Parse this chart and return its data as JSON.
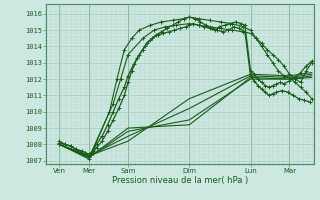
{
  "xlabel": "Pression niveau de la mer( hPa )",
  "bg_color": "#cce8e0",
  "grid_color_major": "#a8c8c0",
  "grid_color_minor": "#b8d8d0",
  "line_color": "#1a5c1a",
  "tick_label_color": "#1a5c1a",
  "spine_color": "#4a8a6a",
  "ylim": [
    1006.8,
    1016.6
  ],
  "yticks": [
    1007,
    1008,
    1009,
    1010,
    1011,
    1012,
    1013,
    1014,
    1015,
    1016
  ],
  "xlim": [
    0.0,
    7.2
  ],
  "xtick_positions": [
    0.35,
    1.15,
    2.2,
    3.85,
    5.5,
    6.55
  ],
  "xtick_labels": [
    "Ven",
    "Mer",
    "Sam",
    "Dim",
    "Lun",
    "Mar"
  ],
  "day_lines": [
    0.35,
    1.15,
    2.2,
    3.85,
    5.5,
    6.55
  ],
  "noisy1_x": [
    0.35,
    0.5,
    0.65,
    0.8,
    0.95,
    1.05,
    1.15,
    1.25,
    1.35,
    1.5,
    1.65,
    1.8,
    1.95,
    2.1,
    2.2,
    2.3,
    2.45,
    2.6,
    2.7,
    2.85,
    3.0,
    3.15,
    3.3,
    3.45,
    3.6,
    3.75,
    3.85,
    3.95,
    4.1,
    4.25,
    4.4,
    4.55,
    4.65,
    4.8,
    4.95,
    5.1,
    5.25,
    5.35,
    5.5,
    5.6,
    5.7,
    5.8,
    5.9,
    6.0,
    6.1,
    6.2,
    6.3,
    6.4,
    6.55,
    6.7,
    6.85,
    7.0,
    7.15
  ],
  "noisy1_y": [
    1008.1,
    1008.0,
    1007.9,
    1007.7,
    1007.5,
    1007.4,
    1007.3,
    1007.5,
    1007.8,
    1008.2,
    1008.8,
    1009.5,
    1010.2,
    1011.0,
    1011.8,
    1012.5,
    1013.3,
    1013.8,
    1014.2,
    1014.5,
    1014.7,
    1014.8,
    1014.9,
    1015.0,
    1015.1,
    1015.2,
    1015.3,
    1015.4,
    1015.3,
    1015.2,
    1015.1,
    1015.0,
    1015.2,
    1015.3,
    1015.4,
    1015.5,
    1015.4,
    1015.3,
    1012.5,
    1012.3,
    1012.0,
    1011.8,
    1011.6,
    1011.5,
    1011.6,
    1011.7,
    1011.8,
    1011.7,
    1011.9,
    1012.1,
    1012.4,
    1012.8,
    1013.1
  ],
  "noisy2_x": [
    0.35,
    0.5,
    0.65,
    0.8,
    0.95,
    1.05,
    1.15,
    1.25,
    1.35,
    1.5,
    1.65,
    1.8,
    1.95,
    2.1,
    2.2,
    2.35,
    2.5,
    2.65,
    2.8,
    2.95,
    3.1,
    3.25,
    3.4,
    3.55,
    3.7,
    3.85,
    4.0,
    4.15,
    4.3,
    4.45,
    4.6,
    4.75,
    4.9,
    5.05,
    5.2,
    5.35,
    5.5,
    5.6,
    5.7,
    5.8,
    5.9,
    6.0,
    6.1,
    6.2,
    6.35,
    6.5,
    6.65,
    6.8,
    6.95,
    7.1
  ],
  "noisy2_y": [
    1008.2,
    1008.0,
    1007.9,
    1007.7,
    1007.6,
    1007.5,
    1007.4,
    1007.6,
    1008.0,
    1008.5,
    1009.2,
    1010.0,
    1010.8,
    1011.5,
    1012.2,
    1012.9,
    1013.5,
    1014.0,
    1014.4,
    1014.7,
    1014.9,
    1015.1,
    1015.3,
    1015.5,
    1015.7,
    1015.8,
    1015.7,
    1015.5,
    1015.3,
    1015.1,
    1015.0,
    1014.9,
    1015.0,
    1015.2,
    1015.1,
    1014.9,
    1012.2,
    1011.9,
    1011.6,
    1011.4,
    1011.2,
    1011.0,
    1011.1,
    1011.2,
    1011.3,
    1011.2,
    1011.0,
    1010.8,
    1010.7,
    1010.6
  ],
  "line1_x": [
    0.35,
    1.15,
    2.2,
    3.85,
    5.5,
    6.55,
    7.15
  ],
  "line1_y": [
    1008.0,
    1007.2,
    1009.0,
    1009.2,
    1012.1,
    1012.0,
    1012.2
  ],
  "line2_x": [
    0.35,
    1.15,
    2.2,
    3.85,
    5.5,
    6.55,
    7.15
  ],
  "line2_y": [
    1008.0,
    1007.2,
    1008.8,
    1009.5,
    1012.0,
    1012.0,
    1012.1
  ],
  "line3_x": [
    0.35,
    1.15,
    2.2,
    3.85,
    5.5,
    6.55,
    7.15
  ],
  "line3_y": [
    1008.0,
    1007.3,
    1008.5,
    1010.2,
    1012.2,
    1012.1,
    1012.3
  ],
  "line4_x": [
    0.35,
    1.15,
    2.2,
    3.85,
    5.5,
    6.55,
    7.15
  ],
  "line4_y": [
    1008.0,
    1007.3,
    1008.2,
    1010.8,
    1012.3,
    1012.2,
    1012.4
  ],
  "upper1_x": [
    0.35,
    1.15,
    1.8,
    2.0,
    2.2,
    2.6,
    2.9,
    3.2,
    3.5,
    3.85,
    4.1,
    4.4,
    4.7,
    5.0,
    5.3,
    5.5,
    5.65,
    5.8,
    5.95,
    6.1,
    6.25,
    6.4,
    6.55,
    6.7,
    6.85,
    7.0,
    7.15
  ],
  "upper1_y": [
    1008.0,
    1007.2,
    1010.5,
    1012.0,
    1013.5,
    1014.5,
    1015.0,
    1015.2,
    1015.3,
    1015.4,
    1015.3,
    1015.2,
    1015.1,
    1015.0,
    1014.9,
    1014.8,
    1014.5,
    1014.2,
    1013.8,
    1013.5,
    1013.2,
    1012.8,
    1012.3,
    1012.0,
    1011.8,
    1012.5,
    1013.0
  ],
  "upper2_x": [
    0.35,
    1.15,
    1.7,
    1.9,
    2.1,
    2.3,
    2.5,
    2.8,
    3.1,
    3.4,
    3.7,
    3.85,
    4.1,
    4.4,
    4.7,
    5.0,
    5.3,
    5.5,
    5.65,
    5.8,
    5.95,
    6.1,
    6.25,
    6.4,
    6.55,
    6.7,
    6.85,
    7.0,
    7.15
  ],
  "upper2_y": [
    1008.0,
    1007.1,
    1010.0,
    1012.0,
    1013.8,
    1014.5,
    1015.0,
    1015.3,
    1015.5,
    1015.6,
    1015.7,
    1015.8,
    1015.7,
    1015.6,
    1015.5,
    1015.4,
    1015.2,
    1015.0,
    1014.5,
    1014.0,
    1013.5,
    1013.0,
    1012.5,
    1012.2,
    1012.1,
    1011.8,
    1011.5,
    1011.2,
    1010.8
  ]
}
